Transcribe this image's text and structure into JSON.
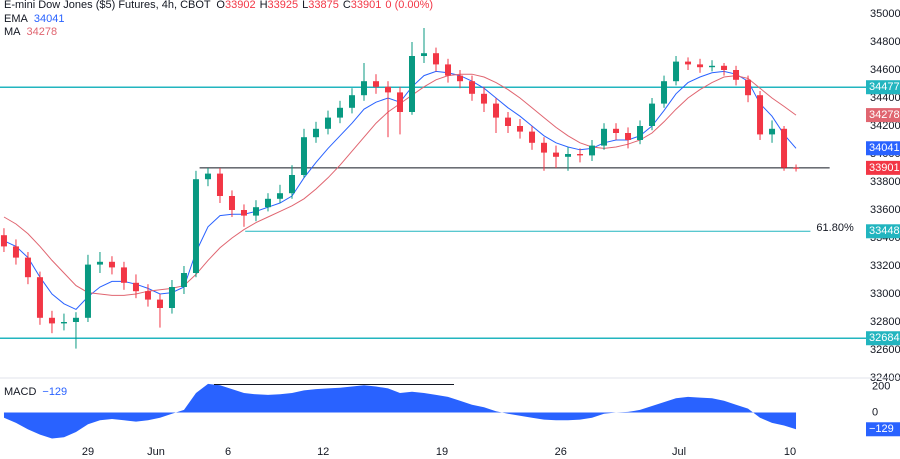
{
  "chart_data": {
    "type": "candlestick",
    "title": "E-mini Dow Jones ($5) Futures, 4h, CBOT",
    "ohlc_letters": [
      "O",
      "H",
      "L",
      "C"
    ],
    "change": "0 (0.00%)",
    "up_color": "#089981",
    "down_color": "#f23645",
    "ylim": [
      32400,
      35100
    ],
    "yticks": [
      32400,
      32600,
      32800,
      33000,
      33200,
      33400,
      33600,
      33800,
      34000,
      34200,
      34400,
      34600,
      34800,
      35000
    ],
    "xlim": [
      -0.33,
      71.83
    ],
    "xticks": [
      {
        "value": 7,
        "label": "29"
      },
      {
        "value": 12.67,
        "label": "Jun"
      },
      {
        "value": 18.67,
        "label": "6"
      },
      {
        "value": 26.6,
        "label": "12"
      },
      {
        "value": 36.5,
        "label": "19"
      },
      {
        "value": 46.4,
        "label": "26"
      },
      {
        "value": 56.25,
        "label": "Jul"
      },
      {
        "value": 65.5,
        "label": "10"
      }
    ],
    "ohlc": [
      [
        33420,
        33470,
        33300,
        33340
      ],
      [
        33340,
        33390,
        33210,
        33260
      ],
      [
        33260,
        33300,
        33070,
        33120
      ],
      [
        33120,
        33160,
        32780,
        32830
      ],
      [
        32830,
        32880,
        32720,
        32790
      ],
      [
        32790,
        32860,
        32740,
        32800
      ],
      [
        32800,
        32870,
        32610,
        32830
      ],
      [
        32830,
        33280,
        32800,
        33210
      ],
      [
        33210,
        33300,
        33150,
        33230
      ],
      [
        33230,
        33270,
        33140,
        33190
      ],
      [
        33190,
        33230,
        33030,
        33080
      ],
      [
        33080,
        33140,
        32970,
        33020
      ],
      [
        33020,
        33070,
        32910,
        32960
      ],
      [
        32960,
        33000,
        32760,
        32900
      ],
      [
        32900,
        33100,
        32860,
        33050
      ],
      [
        33050,
        33200,
        33000,
        33150
      ],
      [
        33150,
        33880,
        33120,
        33820
      ],
      [
        33820,
        33900,
        33770,
        33860
      ],
      [
        33860,
        33900,
        33650,
        33700
      ],
      [
        33700,
        33740,
        33550,
        33600
      ],
      [
        33600,
        33640,
        33480,
        33560
      ],
      [
        33560,
        33670,
        33520,
        33620
      ],
      [
        33620,
        33720,
        33590,
        33680
      ],
      [
        33680,
        33780,
        33650,
        33720
      ],
      [
        33720,
        33920,
        33680,
        33850
      ],
      [
        33850,
        34180,
        33830,
        34120
      ],
      [
        34120,
        34230,
        34080,
        34180
      ],
      [
        34180,
        34310,
        34140,
        34260
      ],
      [
        34260,
        34380,
        34220,
        34330
      ],
      [
        34330,
        34470,
        34290,
        34420
      ],
      [
        34420,
        34650,
        34380,
        34520
      ],
      [
        34520,
        34570,
        34430,
        34480
      ],
      [
        34480,
        34520,
        34120,
        34440
      ],
      [
        34440,
        34480,
        34140,
        34300
      ],
      [
        34300,
        34800,
        34280,
        34700
      ],
      [
        34700,
        34900,
        34650,
        34720
      ],
      [
        34720,
        34760,
        34590,
        34640
      ],
      [
        34640,
        34680,
        34510,
        34560
      ],
      [
        34560,
        34600,
        34470,
        34520
      ],
      [
        34520,
        34560,
        34380,
        34430
      ],
      [
        34430,
        34480,
        34300,
        34360
      ],
      [
        34360,
        34400,
        34150,
        34260
      ],
      [
        34260,
        34300,
        34150,
        34200
      ],
      [
        34200,
        34250,
        34110,
        34160
      ],
      [
        34160,
        34200,
        34030,
        34080
      ],
      [
        34080,
        34120,
        33880,
        34010
      ],
      [
        34010,
        34060,
        33900,
        33980
      ],
      [
        33980,
        34050,
        33880,
        34000
      ],
      [
        34000,
        34040,
        33940,
        33990
      ],
      [
        33990,
        34100,
        33950,
        34060
      ],
      [
        34060,
        34220,
        34030,
        34180
      ],
      [
        34180,
        34220,
        34100,
        34150
      ],
      [
        34150,
        34190,
        34040,
        34100
      ],
      [
        34100,
        34240,
        34070,
        34200
      ],
      [
        34200,
        34400,
        34170,
        34360
      ],
      [
        34360,
        34560,
        34330,
        34520
      ],
      [
        34520,
        34700,
        34490,
        34660
      ],
      [
        34660,
        34690,
        34600,
        34640
      ],
      [
        34640,
        34680,
        34580,
        34620
      ],
      [
        34620,
        34670,
        34590,
        34630
      ],
      [
        34630,
        34650,
        34560,
        34600
      ],
      [
        34600,
        34630,
        34490,
        34530
      ],
      [
        34530,
        34560,
        34370,
        34420
      ],
      [
        34420,
        34450,
        34100,
        34140
      ],
      [
        34140,
        34240,
        34080,
        34180
      ],
      [
        34180,
        34200,
        33880,
        33902
      ],
      [
        33902,
        33925,
        33875,
        33901
      ]
    ],
    "series": [
      {
        "name": "EMA",
        "color": "#2962ff",
        "values": [
          33380,
          33340,
          33260,
          33120,
          33000,
          32930,
          32890,
          32980,
          33050,
          33090,
          33090,
          33070,
          33040,
          33000,
          33010,
          33050,
          33300,
          33480,
          33560,
          33570,
          33570,
          33590,
          33620,
          33650,
          33700,
          33830,
          33940,
          34040,
          34130,
          34220,
          34320,
          34370,
          34400,
          34370,
          34480,
          34560,
          34590,
          34580,
          34560,
          34520,
          34470,
          34400,
          34330,
          34270,
          34200,
          34130,
          34080,
          34050,
          34030,
          34040,
          34080,
          34100,
          34100,
          34130,
          34200,
          34310,
          34430,
          34510,
          34550,
          34580,
          34590,
          34570,
          34520,
          34360,
          34270,
          34140,
          34041
        ]
      },
      {
        "name": "MA",
        "color": "#e06570",
        "values": [
          33550,
          33500,
          33430,
          33340,
          33240,
          33150,
          33060,
          33010,
          33000,
          32990,
          32990,
          33000,
          33020,
          33030,
          33040,
          33060,
          33140,
          33240,
          33330,
          33400,
          33460,
          33510,
          33550,
          33590,
          33630,
          33680,
          33750,
          33830,
          33920,
          34020,
          34120,
          34220,
          34300,
          34360,
          34420,
          34480,
          34530,
          34560,
          34570,
          34570,
          34550,
          34510,
          34460,
          34400,
          34330,
          34260,
          34190,
          34130,
          34080,
          34050,
          34040,
          34050,
          34070,
          34100,
          34150,
          34230,
          34320,
          34400,
          34460,
          34510,
          34550,
          34560,
          34540,
          34470,
          34400,
          34340,
          34278
        ]
      }
    ],
    "levels": [
      {
        "value": 34477,
        "color": "#22b5bf"
      },
      {
        "value": 32684,
        "color": "#22b5bf"
      },
      {
        "value": 33901,
        "color": "#131722",
        "from": 16.3,
        "to": 68.8
      },
      {
        "value": 33448,
        "color": "#22b5bf",
        "from": 20.1,
        "to": 67.2,
        "label": "61.80%"
      }
    ],
    "macd": {
      "name": "MACD",
      "color": "#2962ff",
      "ylim": [
        -250,
        250
      ],
      "yticks": [
        200,
        0
      ],
      "values": [
        -40,
        -80,
        -130,
        -170,
        -200,
        -190,
        -150,
        -90,
        -60,
        -50,
        -60,
        -70,
        -60,
        -40,
        -10,
        20,
        150,
        220,
        210,
        180,
        150,
        140,
        135,
        140,
        150,
        170,
        180,
        185,
        190,
        200,
        210,
        200,
        185,
        150,
        160,
        150,
        135,
        120,
        90,
        60,
        40,
        10,
        -10,
        -25,
        -40,
        -55,
        -60,
        -60,
        -55,
        -40,
        -10,
        0,
        5,
        20,
        50,
        80,
        110,
        120,
        115,
        110,
        90,
        60,
        30,
        -40,
        -80,
        -100,
        -129
      ],
      "value_label": "−129",
      "line": {
        "value": 215,
        "from": 17.5,
        "to": 37.5
      }
    }
  }
}
